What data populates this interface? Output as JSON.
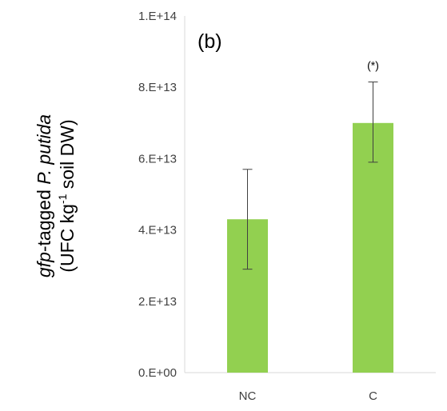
{
  "chart_data": {
    "type": "bar",
    "categories": [
      "NC",
      "C"
    ],
    "values": [
      43000000000000.0,
      70000000000000.0
    ],
    "error_low": [
      29000000000000.0,
      59000000000000.0
    ],
    "error_high": [
      57000000000000.0,
      81500000000000.0
    ],
    "ylim": [
      0,
      100000000000000.0
    ],
    "ytick_values": [
      0,
      20000000000000.0,
      40000000000000.0,
      60000000000000.0,
      80000000000000.0,
      100000000000000.0
    ],
    "ytick_labels": [
      "0.E+00",
      "2.E+13",
      "4.E+13",
      "6.E+13",
      "8.E+13",
      "1.E+14"
    ],
    "ylabel_line1_italic_a": "gfp",
    "ylabel_line1_normal": "-tagged ",
    "ylabel_line1_italic_b": "P. putida",
    "ylabel_line2_prefix": "(UFC kg",
    "ylabel_line2_superscript": "-1",
    "ylabel_line2_suffix": " soil DW)",
    "panel_label": "(b)",
    "annotation": "(*)",
    "annotation_category": "C",
    "bar_color": "#92d050",
    "errorbar_color": "#404040",
    "axis_color": "#d9d9d9",
    "grid": false,
    "legend": "none"
  }
}
